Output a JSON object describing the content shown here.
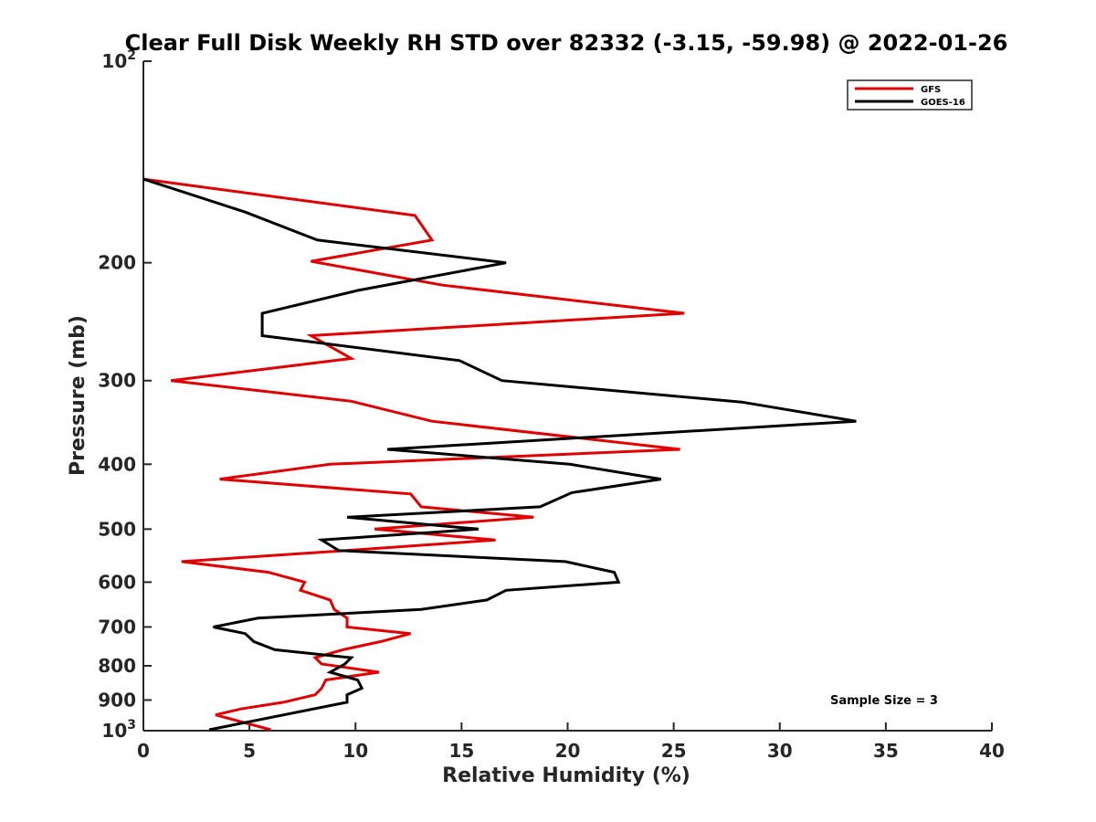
{
  "chart_data": {
    "type": "line",
    "title": "Clear Full Disk Weekly RH STD over 82332 (-3.15, -59.98) @ 2022-01-26",
    "xlabel": "Relative Humidity (%)",
    "ylabel": "Pressure (mb)",
    "xlim": [
      0,
      40
    ],
    "ylim": [
      100,
      1000
    ],
    "y_scale": "log",
    "y_reversed": true,
    "x_ticks": [
      "0",
      "5",
      "10",
      "15",
      "20",
      "25",
      "30",
      "35",
      "40"
    ],
    "y_ticks": [
      {
        "value": 100,
        "label": "10",
        "sup": "2"
      },
      {
        "value": 200,
        "label": "200",
        "sup": ""
      },
      {
        "value": 300,
        "label": "300",
        "sup": ""
      },
      {
        "value": 400,
        "label": "400",
        "sup": ""
      },
      {
        "value": 500,
        "label": "500",
        "sup": ""
      },
      {
        "value": 600,
        "label": "600",
        "sup": ""
      },
      {
        "value": 700,
        "label": "700",
        "sup": ""
      },
      {
        "value": 800,
        "label": "800",
        "sup": ""
      },
      {
        "value": 900,
        "label": "900",
        "sup": ""
      },
      {
        "value": 1000,
        "label": "10",
        "sup": "3"
      }
    ],
    "grid": false,
    "legend_position": "top-right",
    "annotation": "Sample Size = 3",
    "series": [
      {
        "name": "GFS",
        "color": "#e00000",
        "points": [
          [
            0.0,
            150
          ],
          [
            12.8,
            170
          ],
          [
            13.6,
            185
          ],
          [
            7.9,
            199
          ],
          [
            14.1,
            216
          ],
          [
            25.5,
            238
          ],
          [
            7.9,
            257
          ],
          [
            9.8,
            278
          ],
          [
            1.3,
            300
          ],
          [
            9.8,
            322
          ],
          [
            13.6,
            345
          ],
          [
            25.3,
            380
          ],
          [
            8.8,
            400
          ],
          [
            3.6,
            421
          ],
          [
            12.6,
            443
          ],
          [
            13.1,
            463
          ],
          [
            18.4,
            480
          ],
          [
            10.9,
            500
          ],
          [
            16.6,
            519
          ],
          [
            9.6,
            538
          ],
          [
            1.8,
            559
          ],
          [
            5.9,
            580
          ],
          [
            7.6,
            600
          ],
          [
            7.4,
            617
          ],
          [
            8.8,
            638
          ],
          [
            9.0,
            659
          ],
          [
            9.6,
            679
          ],
          [
            9.6,
            700
          ],
          [
            12.6,
            716
          ],
          [
            11.2,
            736
          ],
          [
            9.4,
            757
          ],
          [
            8.1,
            778
          ],
          [
            8.4,
            795
          ],
          [
            11.1,
            818
          ],
          [
            8.6,
            840
          ],
          [
            8.4,
            864
          ],
          [
            8.1,
            884
          ],
          [
            6.6,
            907
          ],
          [
            4.6,
            928
          ],
          [
            3.4,
            947
          ],
          [
            4.5,
            968
          ],
          [
            6.0,
            997
          ]
        ]
      },
      {
        "name": "GOES-16",
        "color": "#000000",
        "points": [
          [
            0.0,
            150
          ],
          [
            4.8,
            168
          ],
          [
            8.2,
            185
          ],
          [
            17.1,
            200
          ],
          [
            10.1,
            220
          ],
          [
            5.6,
            238
          ],
          [
            5.6,
            257
          ],
          [
            14.9,
            280
          ],
          [
            16.9,
            300
          ],
          [
            28.2,
            323
          ],
          [
            33.6,
            345
          ],
          [
            11.5,
            380
          ],
          [
            20.1,
            400
          ],
          [
            24.4,
            421
          ],
          [
            20.2,
            441
          ],
          [
            18.7,
            463
          ],
          [
            9.6,
            480
          ],
          [
            15.8,
            500
          ],
          [
            8.4,
            519
          ],
          [
            9.2,
            538
          ],
          [
            19.9,
            559
          ],
          [
            22.2,
            580
          ],
          [
            22.4,
            600
          ],
          [
            17.1,
            617
          ],
          [
            16.2,
            638
          ],
          [
            13.1,
            659
          ],
          [
            5.4,
            679
          ],
          [
            3.3,
            700
          ],
          [
            4.8,
            716
          ],
          [
            5.2,
            736
          ],
          [
            6.2,
            757
          ],
          [
            9.8,
            778
          ],
          [
            9.5,
            795
          ],
          [
            8.8,
            818
          ],
          [
            10.1,
            840
          ],
          [
            10.3,
            864
          ],
          [
            9.6,
            884
          ],
          [
            9.6,
            907
          ],
          [
            3.1,
            997
          ]
        ]
      }
    ]
  }
}
